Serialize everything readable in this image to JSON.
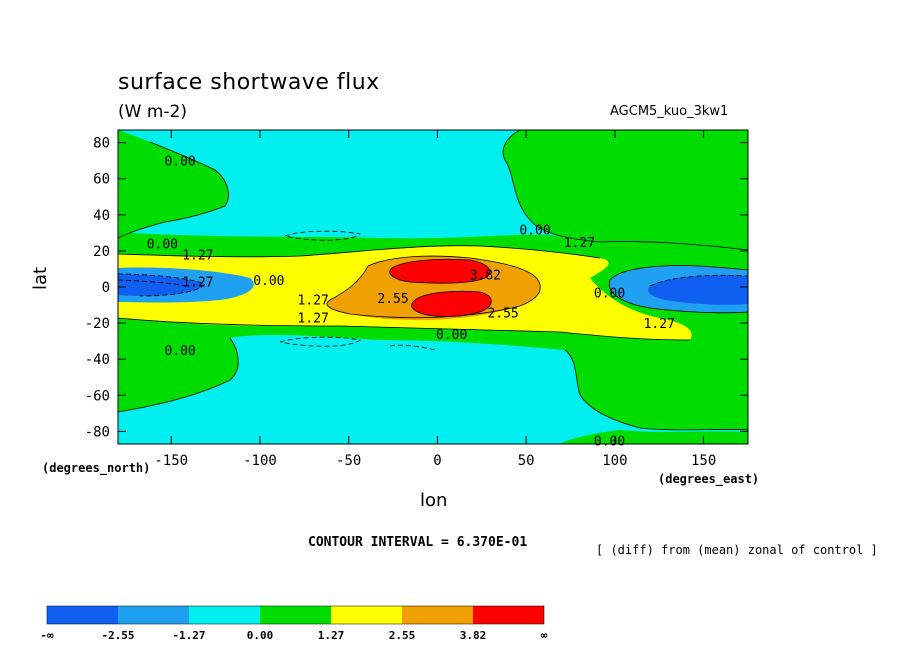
{
  "chart_data": {
    "type": "contour",
    "title": "surface shortwave flux",
    "units": "(W m-2)",
    "case_name": "AGCM5_kuo_3kw1",
    "xlabel": "lon",
    "ylabel": "lat",
    "x_units_label": "(degrees_east)",
    "y_units_label": "(degrees_north)",
    "xlim": [
      -180,
      175
    ],
    "ylim": [
      -87,
      87
    ],
    "x_ticks": [
      -150,
      -100,
      -50,
      0,
      50,
      100,
      150
    ],
    "y_ticks": [
      80,
      60,
      40,
      20,
      0,
      -20,
      -40,
      -60,
      -80
    ],
    "contour_interval_text": "CONTOUR INTERVAL = 6.370E-01",
    "footnote": "[ (diff) from (mean) zonal of control ]",
    "contour_labels": [
      {
        "text": "0.00",
        "lon": -145,
        "lat": 70
      },
      {
        "text": "0.00",
        "lon": -155,
        "lat": 24
      },
      {
        "text": "1.27",
        "lon": -135,
        "lat": 18
      },
      {
        "text": "1.27",
        "lon": -135,
        "lat": 3
      },
      {
        "text": "0.00",
        "lon": -95,
        "lat": 4
      },
      {
        "text": "1.27",
        "lon": -70,
        "lat": -7
      },
      {
        "text": "1.27",
        "lon": -70,
        "lat": -17
      },
      {
        "text": "2.55",
        "lon": -25,
        "lat": -6
      },
      {
        "text": "3.82",
        "lon": 27,
        "lat": 7
      },
      {
        "text": "2.55",
        "lon": 37,
        "lat": -14
      },
      {
        "text": "0.00",
        "lon": 8,
        "lat": -26
      },
      {
        "text": "0.00",
        "lon": 55,
        "lat": 32
      },
      {
        "text": "1.27",
        "lon": 80,
        "lat": 25
      },
      {
        "text": "0.00",
        "lon": 97,
        "lat": -3
      },
      {
        "text": "1.27",
        "lon": 125,
        "lat": -20
      },
      {
        "text": "0.00",
        "lon": -145,
        "lat": -35
      },
      {
        "text": "0.00",
        "lon": 97,
        "lat": -85
      }
    ],
    "color_levels": [
      {
        "label": "-∞",
        "color": "#0f5ff0"
      },
      {
        "label": "-2.55",
        "color": "#1fa0f0"
      },
      {
        "label": "-1.27",
        "color": "#00f0f0"
      },
      {
        "label": "0.00",
        "color": "#00dd00"
      },
      {
        "label": "1.27",
        "color": "#ffff00"
      },
      {
        "label": "2.55",
        "color": "#f0a000"
      },
      {
        "label": "3.82",
        "color": "#ff0000"
      },
      {
        "label": "∞",
        "color": ""
      }
    ]
  }
}
